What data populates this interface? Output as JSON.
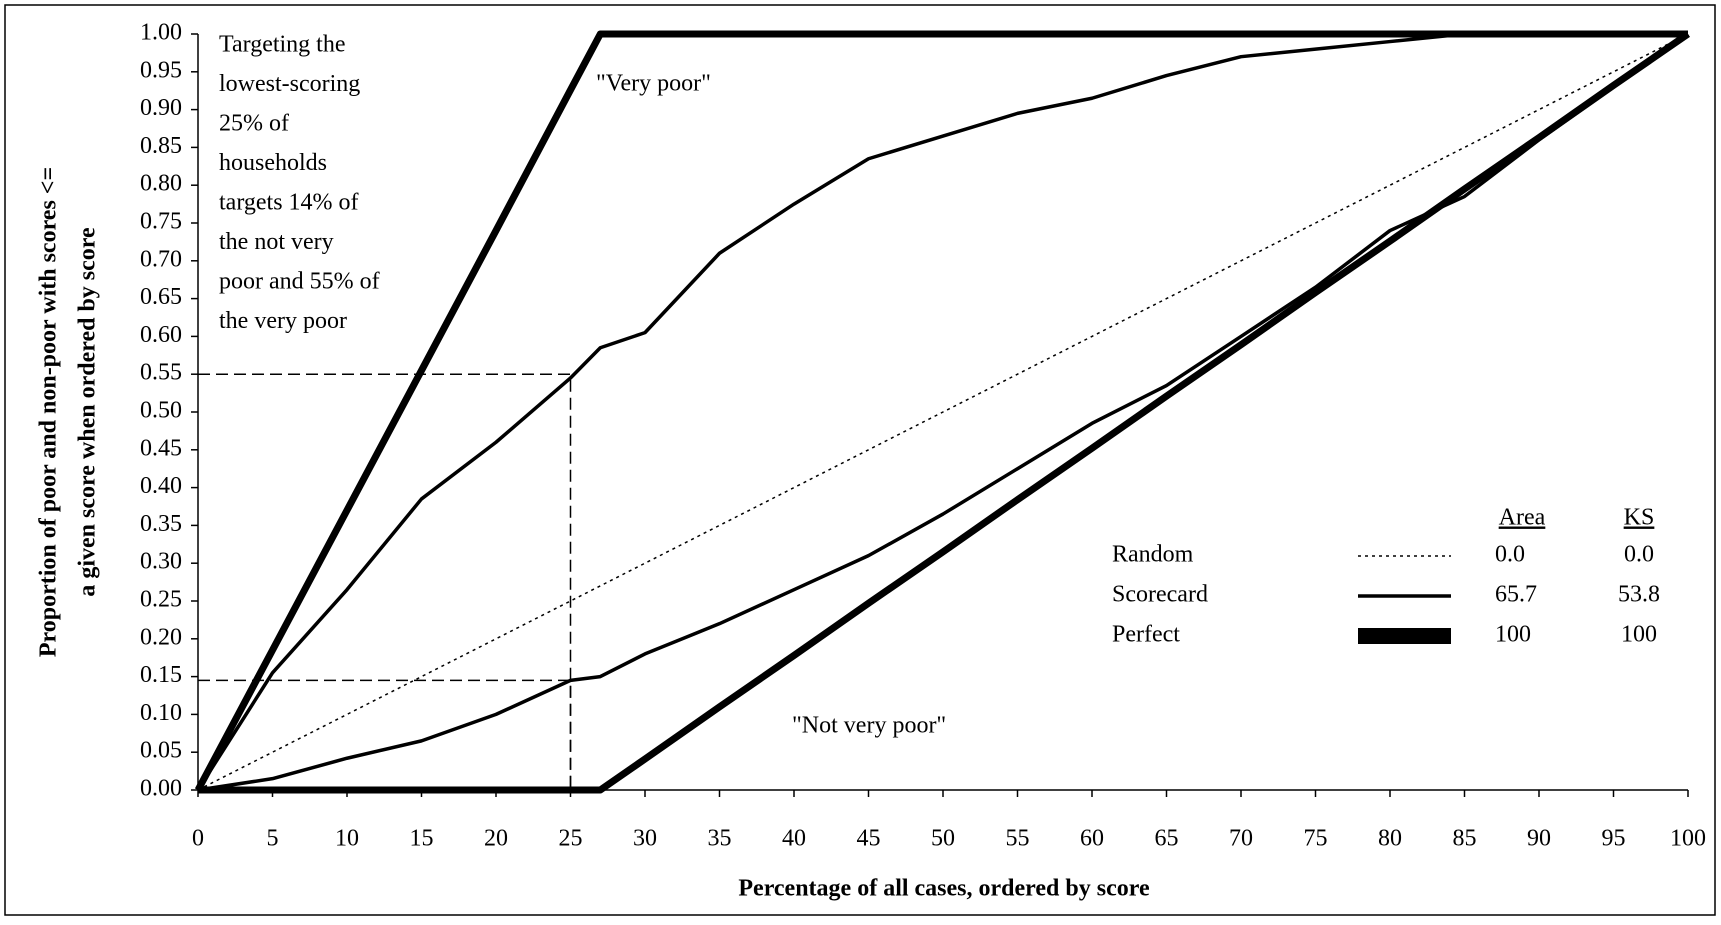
{
  "chart_data": {
    "type": "line",
    "x": [
      0,
      5,
      10,
      15,
      20,
      25,
      27,
      30,
      35,
      40,
      45,
      50,
      55,
      60,
      65,
      70,
      75,
      80,
      85,
      90,
      95,
      100
    ],
    "series": [
      {
        "style": "dotted",
        "values": [
          0,
          0.05,
          0.1,
          0.15,
          0.2,
          0.25,
          0.27,
          0.3,
          0.35,
          0.4,
          0.45,
          0.5,
          0.55,
          0.6,
          0.65,
          0.7,
          0.75,
          0.8,
          0.85,
          0.9,
          0.95,
          1
        ]
      },
      {
        "style": "medium",
        "values": [
          0,
          0.155,
          0.265,
          0.385,
          0.46,
          0.545,
          0.585,
          0.605,
          0.71,
          0.775,
          0.835,
          0.865,
          0.895,
          0.915,
          0.945,
          0.97,
          0.98,
          0.99,
          1,
          1,
          1,
          1
        ]
      },
      {
        "style": "medium",
        "values": [
          0,
          0.015,
          0.042,
          0.065,
          0.1,
          0.145,
          0.15,
          0.18,
          0.22,
          0.265,
          0.31,
          0.365,
          0.425,
          0.485,
          0.535,
          0.6,
          0.665,
          0.74,
          0.785,
          0.86,
          0.93,
          1
        ]
      },
      {
        "style": "thick",
        "values": [
          0,
          0.185,
          0.37,
          0.555,
          0.74,
          0.926,
          1,
          1,
          1,
          1,
          1,
          1,
          1,
          1,
          1,
          1,
          1,
          1,
          1,
          1,
          1,
          1
        ]
      },
      {
        "style": "thick",
        "values": [
          0,
          0,
          0,
          0,
          0,
          0,
          0,
          0.041,
          0.11,
          0.178,
          0.247,
          0.315,
          0.384,
          0.452,
          0.521,
          0.589,
          0.658,
          0.726,
          0.795,
          0.863,
          0.932,
          1
        ]
      }
    ],
    "xlabel": "Percentage of all cases, ordered by score",
    "ylabel": [
      "Proportion of poor and non-poor with scores <=",
      "a given score when ordered by score"
    ],
    "xlim": [
      0,
      100
    ],
    "ylim": [
      0,
      1
    ],
    "xticks": [
      0,
      5,
      10,
      15,
      20,
      25,
      30,
      35,
      40,
      45,
      50,
      55,
      60,
      65,
      70,
      75,
      80,
      85,
      90,
      95,
      100
    ],
    "yticks": [
      {
        "value": 0,
        "label": "0.00"
      },
      {
        "value": 0.05,
        "label": "0.05"
      },
      {
        "value": 0.1,
        "label": "0.10"
      },
      {
        "value": 0.15,
        "label": "0.15"
      },
      {
        "value": 0.2,
        "label": "0.20"
      },
      {
        "value": 0.25,
        "label": "0.25"
      },
      {
        "value": 0.3,
        "label": "0.30"
      },
      {
        "value": 0.35,
        "label": "0.35"
      },
      {
        "value": 0.4,
        "label": "0.40"
      },
      {
        "value": 0.45,
        "label": "0.45"
      },
      {
        "value": 0.5,
        "label": "0.50"
      },
      {
        "value": 0.55,
        "label": "0.55"
      },
      {
        "value": 0.6,
        "label": "0.60"
      },
      {
        "value": 0.65,
        "label": "0.65"
      },
      {
        "value": 0.7,
        "label": "0.70"
      },
      {
        "value": 0.75,
        "label": "0.75"
      },
      {
        "value": 0.8,
        "label": "0.80"
      },
      {
        "value": 0.85,
        "label": "0.85"
      },
      {
        "value": 0.9,
        "label": "0.90"
      },
      {
        "value": 0.95,
        "label": "0.95"
      },
      {
        "value": 1,
        "label": "1.00"
      }
    ],
    "guides": {
      "x": 25,
      "y": [
        0.55,
        0.145
      ]
    },
    "annotation": [
      "Targeting the",
      "lowest-scoring",
      "25% of",
      "households",
      "targets 14% of",
      "the not very",
      "poor and 55% of",
      "the very poor"
    ],
    "curve_labels": [
      "\"Very poor\"",
      "\"Not very poor\""
    ],
    "legend": {
      "headers": [
        "Area",
        "KS"
      ],
      "rows": [
        {
          "name": "Random",
          "style": "dotted",
          "area": "0.0",
          "ks": "0.0"
        },
        {
          "name": "Scorecard",
          "style": "medium",
          "area": "65.7",
          "ks": "53.8"
        },
        {
          "name": "Perfect",
          "style": "thick",
          "area": "100",
          "ks": "100"
        }
      ]
    }
  }
}
